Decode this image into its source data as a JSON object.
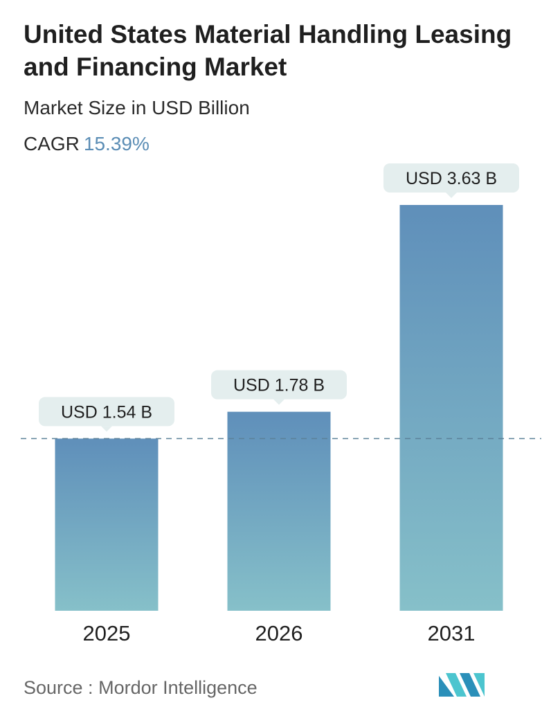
{
  "header": {
    "title": "United States Material Handling Leasing and Financing Market",
    "subtitle": "Market Size in USD Billion",
    "cagr_label": "CAGR",
    "cagr_value": "15.39%"
  },
  "chart_data": {
    "type": "bar",
    "title": "United States Material Handling Leasing and Financing Market",
    "subtitle": "Market Size in USD Billion",
    "categories": [
      "2025",
      "2026",
      "2031"
    ],
    "values": [
      1.54,
      1.78,
      3.63
    ],
    "data_labels": [
      "USD 1.54 B",
      "USD 1.78 B",
      "USD 3.63 B"
    ],
    "ylim": [
      0,
      3.63
    ],
    "grid": false,
    "reference_line_value": 1.54,
    "colors": {
      "bar_top": "#5f8fba",
      "bar_bottom": "#86c0c9",
      "label_bg": "#e4eeee",
      "reference_line": "#5c8199"
    }
  },
  "footer": {
    "source_label": "Source :",
    "source_name": "Mordor Intelligence",
    "logo_icon": "mordor-intelligence-logo-icon"
  }
}
